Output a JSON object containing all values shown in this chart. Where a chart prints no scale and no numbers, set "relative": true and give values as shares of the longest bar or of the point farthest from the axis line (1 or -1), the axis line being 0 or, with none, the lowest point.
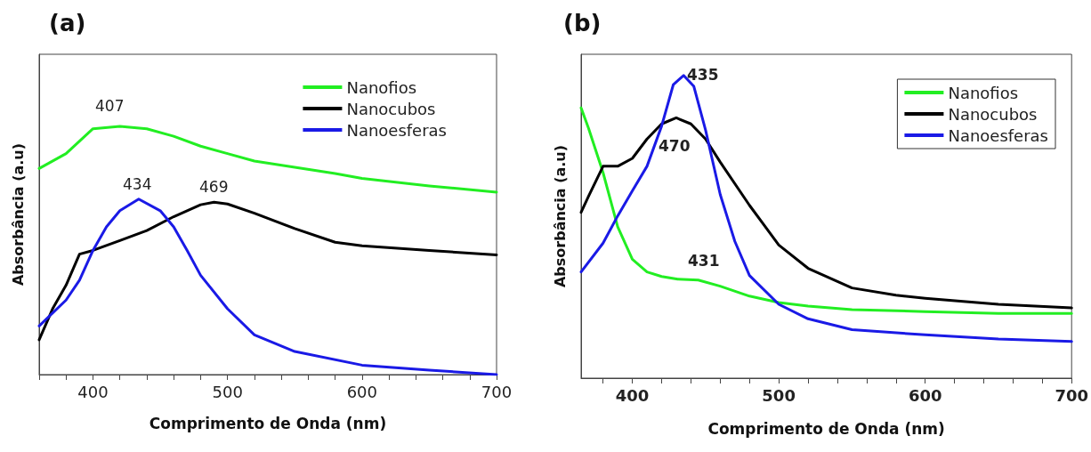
{
  "chart_data": [
    {
      "type": "line",
      "title": "(a)",
      "xlabel": "Comprimento de Onda (nm)",
      "ylabel": "Absorbância (a.u)",
      "relative": true,
      "legend": "top right",
      "grid": false,
      "xlim": [
        360,
        700
      ],
      "xticks": [
        {
          "value": 360,
          "label": null
        },
        {
          "value": 380,
          "label": null
        },
        400,
        {
          "value": 420,
          "label": null
        },
        {
          "value": 440,
          "label": null
        },
        {
          "value": 460,
          "label": null
        },
        {
          "value": 480,
          "label": null
        },
        500,
        {
          "value": 520,
          "label": null
        },
        {
          "value": 540,
          "label": null
        },
        {
          "value": 560,
          "label": null
        },
        {
          "value": 580,
          "label": null
        },
        600,
        {
          "value": 620,
          "label": null
        },
        {
          "value": 640,
          "label": null
        },
        {
          "value": 660,
          "label": null
        },
        {
          "value": 680,
          "label": null
        },
        700
      ],
      "annotations": [
        "407",
        "434",
        "469"
      ],
      "series": [
        {
          "name": "Nanofios",
          "color": "#22ee22",
          "x": [
            360,
            380,
            400,
            420,
            440,
            460,
            480,
            500,
            520,
            550,
            580,
            600,
            650,
            700
          ],
          "values": [
            0.83,
            0.89,
            0.99,
            1,
            0.99,
            0.96,
            0.92,
            0.89,
            0.86,
            0.835,
            0.81,
            0.79,
            0.76,
            0.735
          ]
        },
        {
          "name": "Nanocubos",
          "color": "#000000",
          "x": [
            360,
            370,
            380,
            390,
            400,
            420,
            440,
            460,
            480,
            490,
            500,
            520,
            550,
            580,
            600,
            650,
            700
          ],
          "values": [
            0.14,
            0.265,
            0.36,
            0.485,
            0.5,
            0.54,
            0.58,
            0.636,
            0.684,
            0.694,
            0.687,
            0.65,
            0.588,
            0.533,
            0.519,
            0.5,
            0.482
          ]
        },
        {
          "name": "Nanoesferas",
          "color": "#1a1ae6",
          "x": [
            360,
            380,
            390,
            400,
            410,
            420,
            434,
            450,
            460,
            470,
            480,
            500,
            520,
            550,
            600,
            650,
            700
          ],
          "values": [
            0.196,
            0.3,
            0.38,
            0.5,
            0.595,
            0.66,
            0.707,
            0.66,
            0.595,
            0.5,
            0.4,
            0.265,
            0.16,
            0.093,
            0.038,
            0.018,
            0
          ]
        }
      ]
    },
    {
      "type": "line",
      "title": "(b)",
      "xlabel": "Comprimento de Onda (nm)",
      "ylabel": "Absorbância (a.u)",
      "relative": true,
      "legend": "top right",
      "grid": false,
      "xlim": [
        365,
        700
      ],
      "xticks": [
        {
          "value": 380,
          "label": null
        },
        400,
        {
          "value": 420,
          "label": null
        },
        {
          "value": 440,
          "label": null
        },
        {
          "value": 460,
          "label": null
        },
        {
          "value": 480,
          "label": null
        },
        500,
        {
          "value": 520,
          "label": null
        },
        {
          "value": 540,
          "label": null
        },
        {
          "value": 560,
          "label": null
        },
        {
          "value": 580,
          "label": null
        },
        600,
        {
          "value": 620,
          "label": null
        },
        {
          "value": 640,
          "label": null
        },
        {
          "value": 660,
          "label": null
        },
        {
          "value": 680,
          "label": null
        },
        700
      ],
      "annotations": [
        "435",
        "470",
        "431"
      ],
      "series": [
        {
          "name": "Nanofios",
          "color": "#22ee22",
          "x": [
            365,
            370,
            380,
            390,
            400,
            410,
            420,
            431,
            445,
            460,
            480,
            500,
            520,
            550,
            600,
            650,
            700
          ],
          "values": [
            0.893,
            0.827,
            0.679,
            0.5,
            0.393,
            0.351,
            0.336,
            0.327,
            0.324,
            0.304,
            0.271,
            0.25,
            0.238,
            0.226,
            0.22,
            0.214,
            0.214
          ]
        },
        {
          "name": "Nanocubos",
          "color": "#000000",
          "x": [
            365,
            370,
            380,
            390,
            400,
            410,
            420,
            430,
            440,
            450,
            460,
            480,
            500,
            520,
            550,
            580,
            600,
            650,
            700
          ],
          "values": [
            0.548,
            0.6,
            0.7,
            0.7,
            0.726,
            0.79,
            0.84,
            0.86,
            0.84,
            0.79,
            0.714,
            0.571,
            0.44,
            0.363,
            0.298,
            0.274,
            0.264,
            0.244,
            0.232
          ]
        },
        {
          "name": "Nanoesferas",
          "color": "#1a1ae6",
          "x": [
            365,
            380,
            390,
            400,
            410,
            420,
            428,
            435,
            442,
            450,
            460,
            470,
            480,
            500,
            520,
            550,
            600,
            650,
            700
          ],
          "values": [
            0.351,
            0.446,
            0.536,
            0.619,
            0.7,
            0.833,
            0.97,
            1,
            0.964,
            0.82,
            0.607,
            0.452,
            0.339,
            0.244,
            0.196,
            0.16,
            0.143,
            0.129,
            0.121
          ]
        }
      ]
    }
  ]
}
